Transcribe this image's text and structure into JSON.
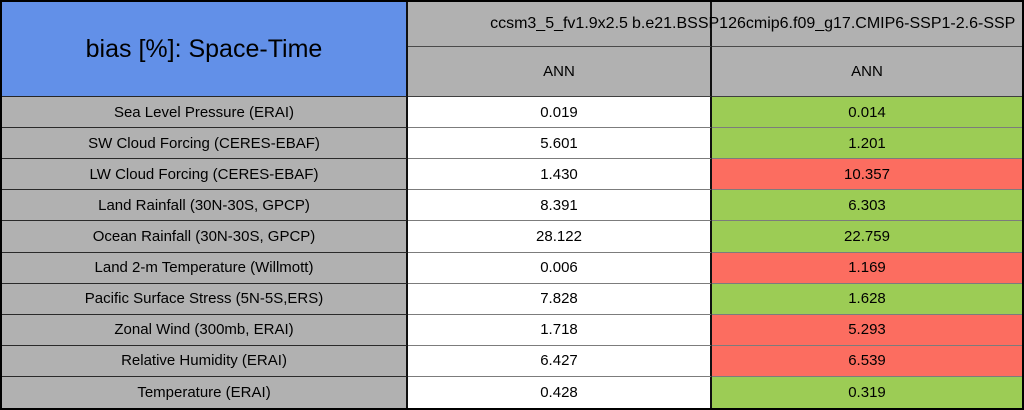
{
  "colors": {
    "title_bg": "#6290E8",
    "header_bg": "#B1B1B1",
    "label_bg": "#B1B1B1",
    "value_bg": "#FFFFFF",
    "better_green": "#9CCC55",
    "worse_red": "#FC6D60",
    "text": "#000000"
  },
  "chart_data": {
    "type": "table",
    "title": "bias [%]: Space-Time",
    "columns": [
      {
        "model": "ccsm3_5_fv1.9x2.5",
        "season": "ANN"
      },
      {
        "model": "b.e21.BSSP126cmip6.f09_g17.CMIP6-SSP1-2.6-SSP",
        "season": "ANN"
      }
    ],
    "rows": [
      {
        "label": "Sea Level Pressure (ERAI)",
        "values": [
          "0.019",
          "0.014"
        ],
        "highlight": [
          null,
          "better_green"
        ]
      },
      {
        "label": "SW Cloud Forcing (CERES-EBAF)",
        "values": [
          "5.601",
          "1.201"
        ],
        "highlight": [
          null,
          "better_green"
        ]
      },
      {
        "label": "LW Cloud Forcing (CERES-EBAF)",
        "values": [
          "1.430",
          "10.357"
        ],
        "highlight": [
          null,
          "worse_red"
        ]
      },
      {
        "label": "Land Rainfall (30N-30S, GPCP)",
        "values": [
          "8.391",
          "6.303"
        ],
        "highlight": [
          null,
          "better_green"
        ]
      },
      {
        "label": "Ocean Rainfall (30N-30S, GPCP)",
        "values": [
          "28.122",
          "22.759"
        ],
        "highlight": [
          null,
          "better_green"
        ]
      },
      {
        "label": "Land 2-m Temperature (Willmott)",
        "values": [
          "0.006",
          "1.169"
        ],
        "highlight": [
          null,
          "worse_red"
        ]
      },
      {
        "label": "Pacific Surface Stress (5N-5S,ERS)",
        "values": [
          "7.828",
          "1.628"
        ],
        "highlight": [
          null,
          "better_green"
        ]
      },
      {
        "label": "Zonal Wind (300mb, ERAI)",
        "values": [
          "1.718",
          "5.293"
        ],
        "highlight": [
          null,
          "worse_red"
        ]
      },
      {
        "label": "Relative Humidity (ERAI)",
        "values": [
          "6.427",
          "6.539"
        ],
        "highlight": [
          null,
          "worse_red"
        ]
      },
      {
        "label": "Temperature (ERAI)",
        "values": [
          "0.428",
          "0.319"
        ],
        "highlight": [
          null,
          "better_green"
        ]
      }
    ]
  }
}
